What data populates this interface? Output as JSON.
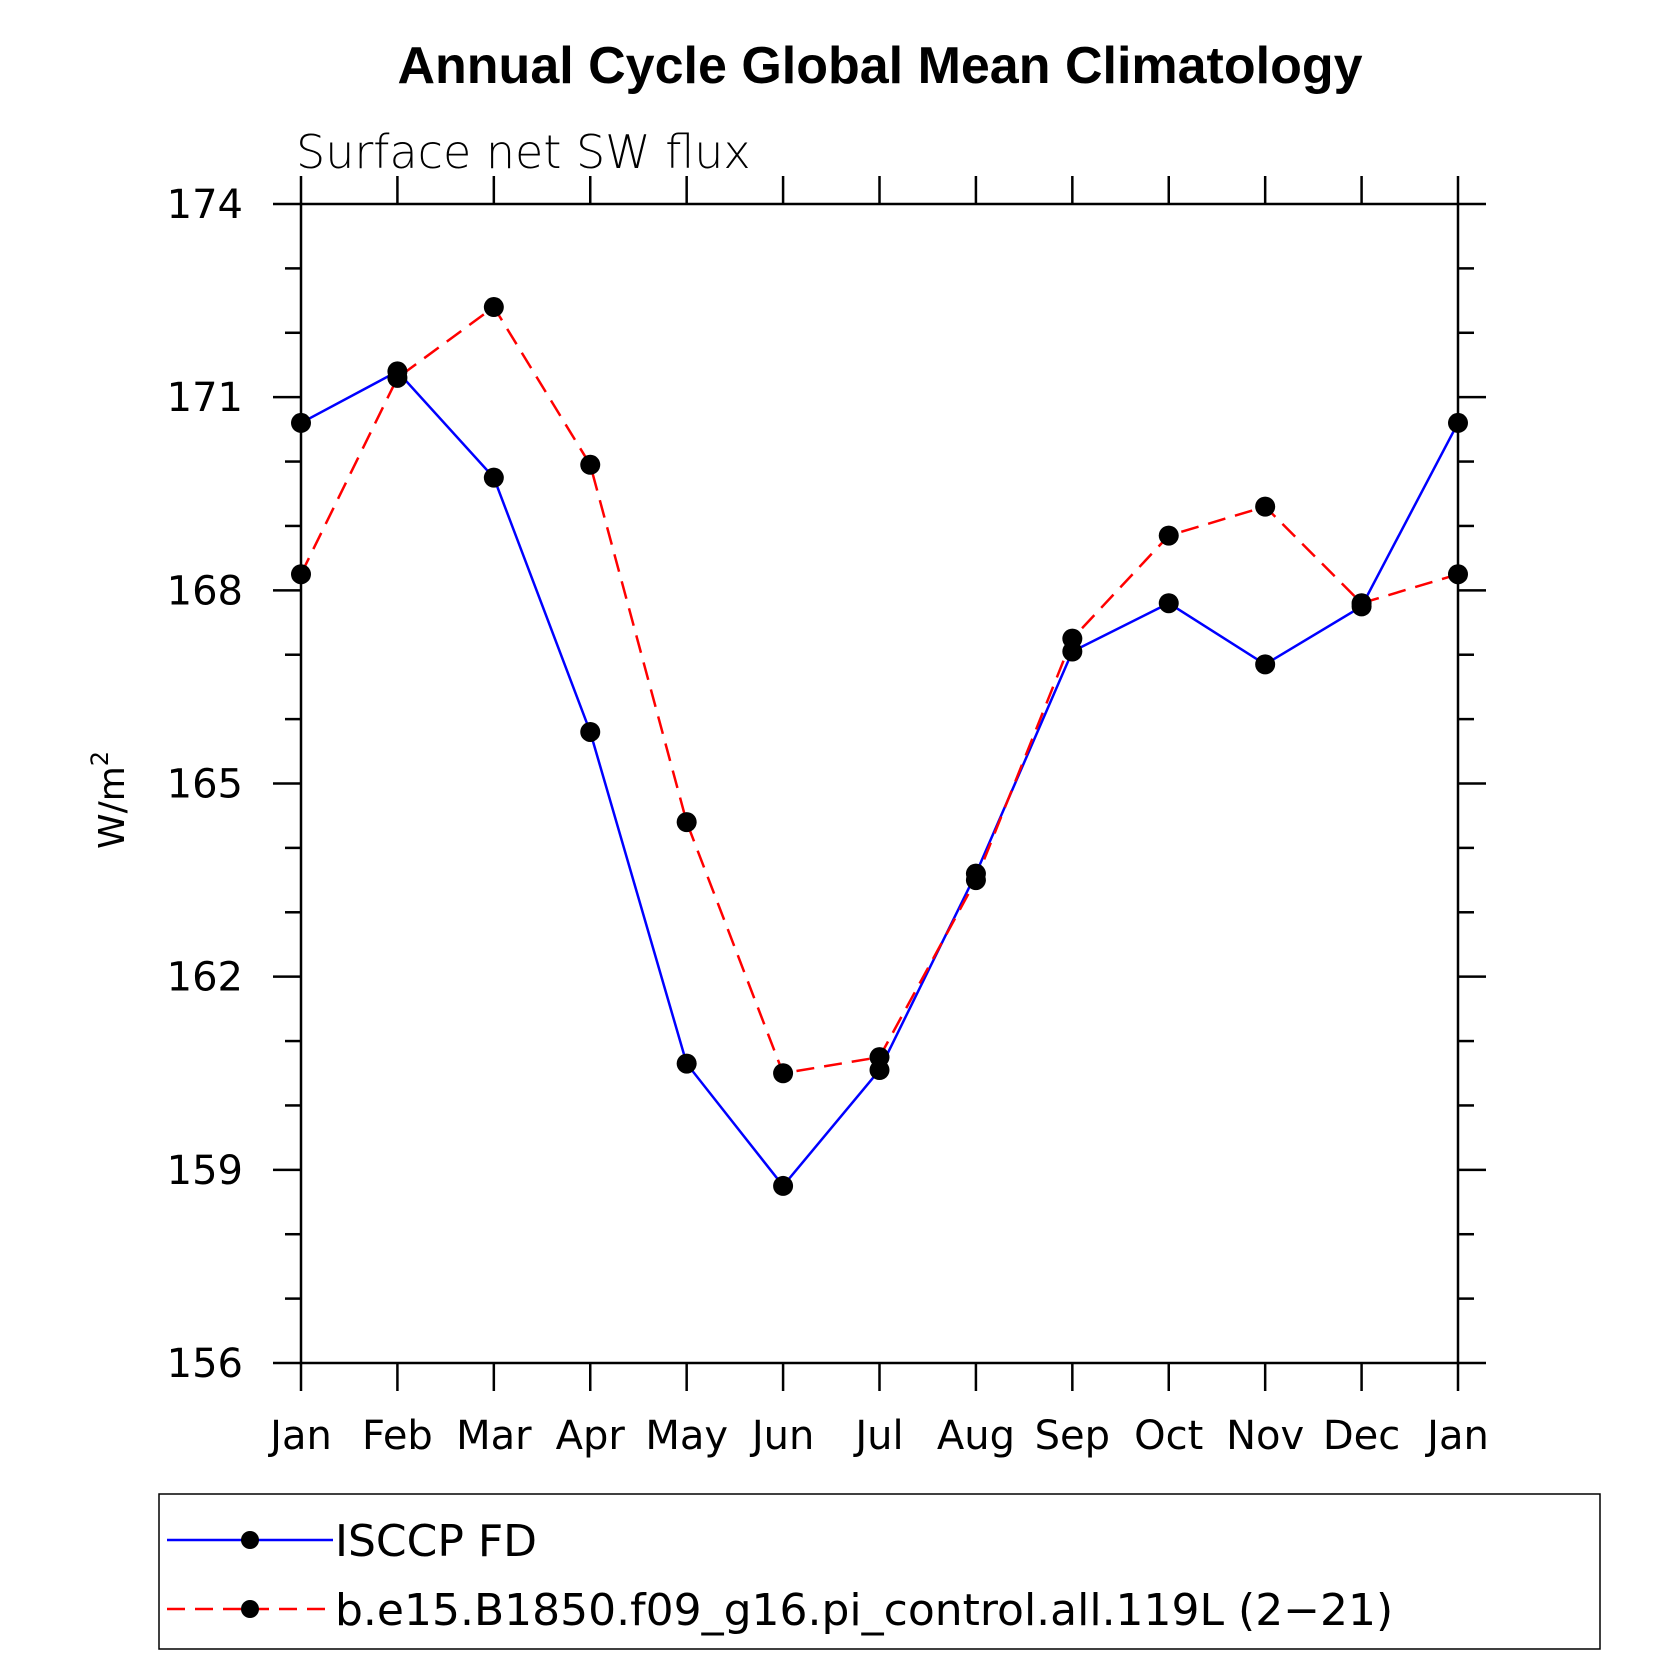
{
  "chart_data": {
    "type": "line",
    "title": "Annual Cycle Global Mean Climatology",
    "subtitle": "Surface net SW flux",
    "ylabel_main": "W/m",
    "ylabel_sup": "2",
    "xlabel": "",
    "categories": [
      "Jan",
      "Feb",
      "Mar",
      "Apr",
      "May",
      "Jun",
      "Jul",
      "Aug",
      "Sep",
      "Oct",
      "Nov",
      "Dec",
      "Jan"
    ],
    "ylim": [
      156,
      174
    ],
    "yticks": [
      156,
      159,
      162,
      165,
      168,
      171,
      174
    ],
    "grid": false,
    "legend_position": "bottom",
    "series": [
      {
        "name": "ISCCP FD",
        "color": "#0000ff",
        "dash": "solid",
        "values": [
          170.6,
          171.4,
          169.75,
          165.8,
          160.65,
          158.75,
          160.55,
          163.6,
          167.05,
          167.8,
          166.85,
          167.75,
          170.6
        ]
      },
      {
        "name": "b.e15.B1850.f09_g16.pi_control.all.119L (2−21)",
        "color": "#ff0000",
        "dash": "dashed",
        "values": [
          168.25,
          171.3,
          172.4,
          169.95,
          164.4,
          160.5,
          160.75,
          163.5,
          167.25,
          168.85,
          169.3,
          167.8,
          168.25
        ]
      }
    ]
  }
}
